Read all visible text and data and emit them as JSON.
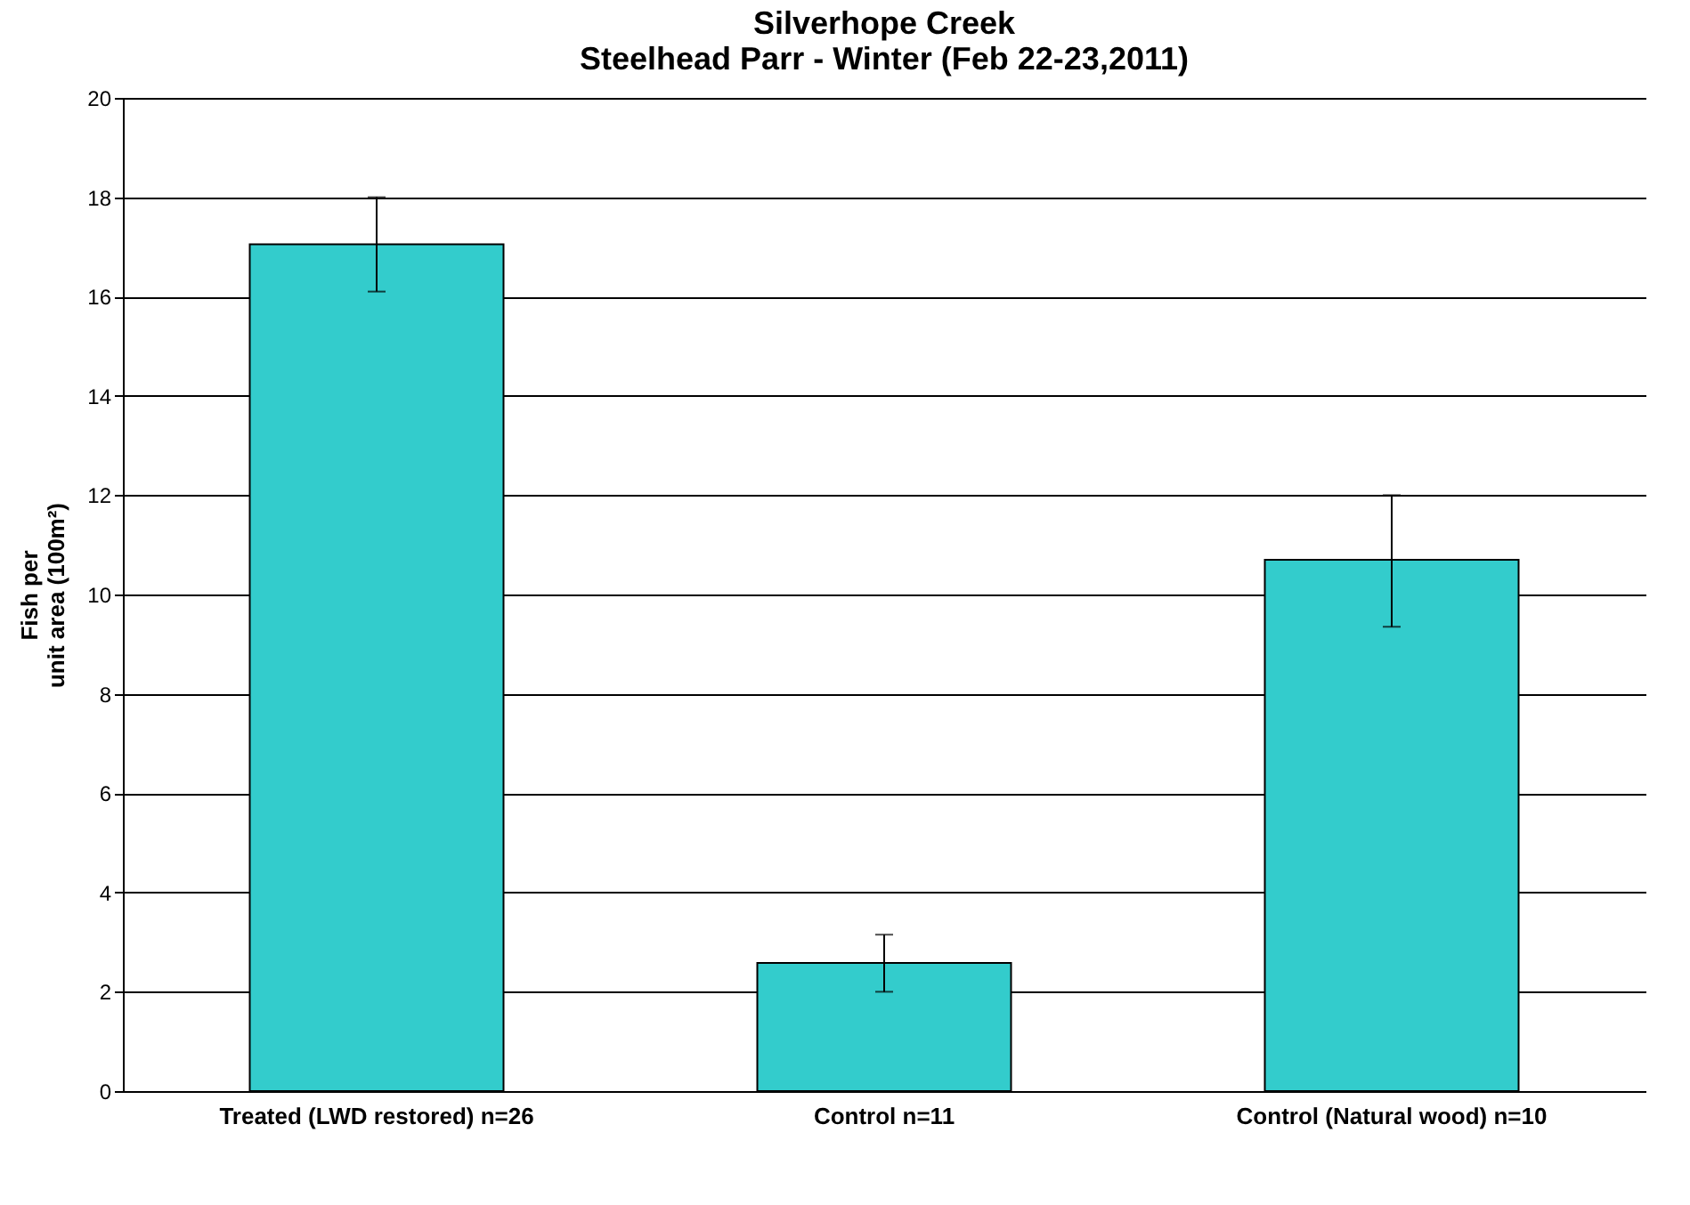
{
  "chart_data": {
    "type": "bar",
    "title": [
      "Silverhope Creek",
      "Steelhead Parr - Winter (Feb 22-23,2011)"
    ],
    "ylabel": [
      "Fish per",
      "unit area (100m²)"
    ],
    "categories": [
      "Treated (LWD restored) n=26",
      "Control n=11",
      "Control (Natural wood) n=10"
    ],
    "values": [
      17.05,
      2.58,
      10.7
    ],
    "color": "#33cccc",
    "errors": [
      [
        16.1,
        18.0
      ],
      [
        2.0,
        3.15
      ],
      [
        9.35,
        12.0
      ]
    ],
    "ylim": [
      0,
      20
    ],
    "yticks": [
      0,
      2,
      4,
      6,
      8,
      10,
      12,
      14,
      16,
      18,
      20
    ],
    "grid": "y"
  }
}
